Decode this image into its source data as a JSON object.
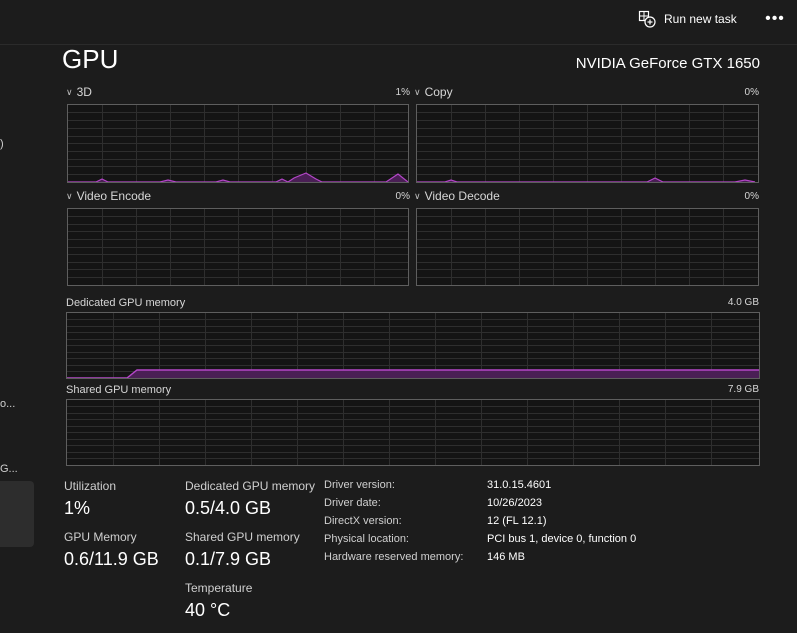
{
  "toolbar": {
    "run_new_task_label": "Run new task",
    "more_label": "•••"
  },
  "sidebar": {
    "fragments": [
      ")",
      "o...",
      "G..."
    ]
  },
  "header": {
    "title": "GPU",
    "device_name": "NVIDIA GeForce GTX 1650"
  },
  "engines": [
    {
      "label": "3D",
      "percent": "1%"
    },
    {
      "label": "Copy",
      "percent": "0%"
    },
    {
      "label": "Video Encode",
      "percent": "0%"
    },
    {
      "label": "Video Decode",
      "percent": "0%"
    }
  ],
  "memory_graphs": {
    "dedicated": {
      "label": "Dedicated GPU memory",
      "max": "4.0 GB"
    },
    "shared": {
      "label": "Shared GPU memory",
      "max": "7.9 GB"
    }
  },
  "stats": {
    "utilization": {
      "label": "Utilization",
      "value": "1%"
    },
    "gpu_memory": {
      "label": "GPU Memory",
      "value": "0.6/11.9 GB"
    },
    "dedicated": {
      "label": "Dedicated GPU memory",
      "value": "0.5/4.0 GB"
    },
    "shared": {
      "label": "Shared GPU memory",
      "value": "0.1/7.9 GB"
    },
    "temperature": {
      "label": "Temperature",
      "value": "40 °C"
    }
  },
  "info": [
    {
      "label": "Driver version:",
      "value": "31.0.15.4601"
    },
    {
      "label": "Driver date:",
      "value": "10/26/2023"
    },
    {
      "label": "DirectX version:",
      "value": "12 (FL 12.1)"
    },
    {
      "label": "Physical location:",
      "value": "PCI bus 1, device 0, function 0"
    },
    {
      "label": "Hardware reserved memory:",
      "value": "146 MB"
    }
  ],
  "colors": {
    "accent": "#b446c8",
    "accent_fill": "#4a1f55",
    "grid": "#2e2e2e",
    "border": "#5e5e5e"
  },
  "icons": {
    "run_new_task": "run-task-icon",
    "more": "more-icon",
    "expand": "chevron-down-icon"
  }
}
